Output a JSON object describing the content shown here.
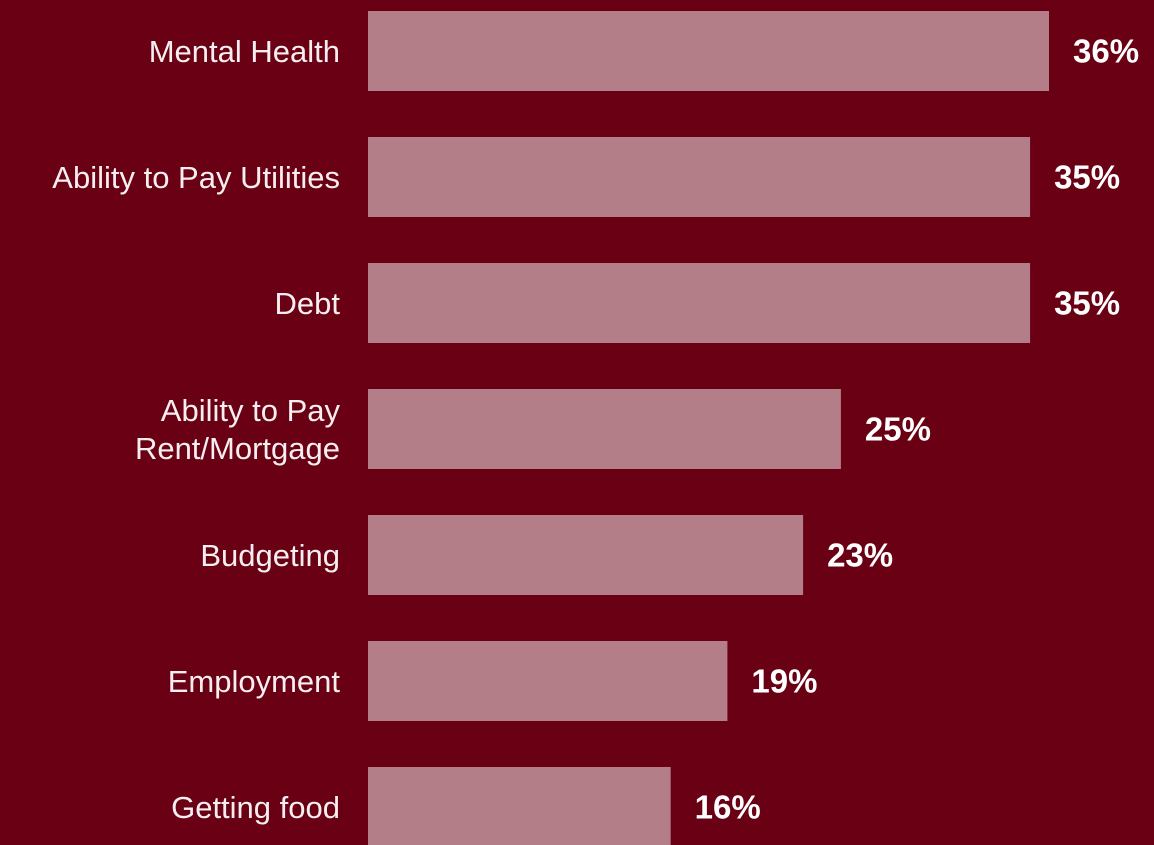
{
  "chart_data": {
    "type": "bar",
    "orientation": "horizontal",
    "categories": [
      "Mental Health",
      "Ability to Pay Utilities",
      "Debt",
      "Ability to Pay Rent/Mortgage",
      "Budgeting",
      "Employment",
      "Getting food"
    ],
    "values": [
      36,
      35,
      35,
      25,
      23,
      19,
      16
    ],
    "value_labels": [
      "36%",
      "35%",
      "35%",
      "25%",
      "23%",
      "19%",
      "16%"
    ],
    "unit": "%",
    "grid": false,
    "legend": false
  },
  "colors": {
    "background": "#6a0014",
    "bar": "#b47e88",
    "label_text": "#f6eef0",
    "value_text": "#ffffff"
  }
}
